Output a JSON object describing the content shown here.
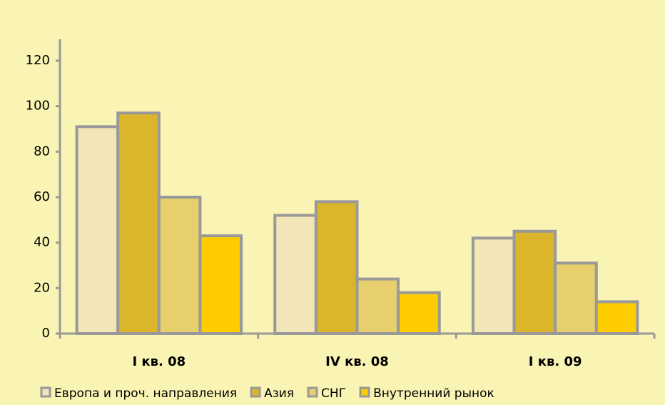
{
  "chart_data": {
    "type": "bar",
    "categories": [
      "I кв. 08",
      "IV кв. 08",
      "I кв. 09"
    ],
    "series": [
      {
        "name": "Европа и проч. направления",
        "color": "#f2e6b8",
        "values": [
          91,
          52,
          42
        ]
      },
      {
        "name": "Азия",
        "color": "#dbb52a",
        "values": [
          97,
          58,
          45
        ]
      },
      {
        "name": "СНГ",
        "color": "#e6cf6c",
        "values": [
          60,
          24,
          31
        ]
      },
      {
        "name": "Внутренний рынок",
        "color": "#ffcc00",
        "values": [
          43,
          18,
          14
        ]
      }
    ],
    "ylim": [
      0,
      120
    ],
    "yticks": [
      0,
      20,
      40,
      60,
      80,
      100,
      120
    ],
    "grid": false,
    "legend": "bottom"
  }
}
